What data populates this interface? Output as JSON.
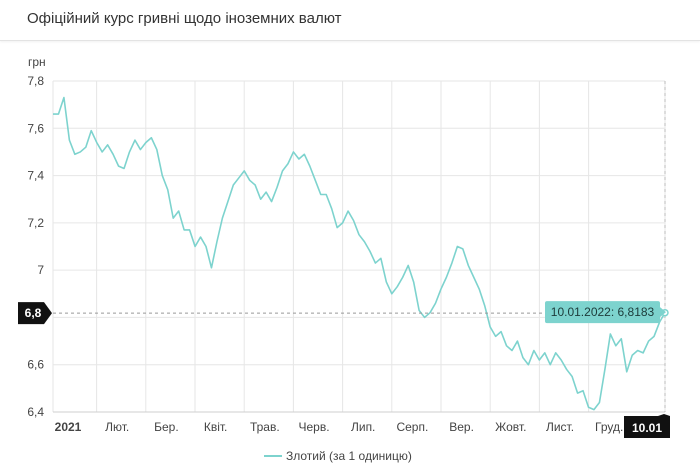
{
  "header": {
    "title": "Офіційний курс гривні щодо іноземних валют"
  },
  "chart_data": {
    "type": "line",
    "ylabel": "грн",
    "ylim": [
      6.4,
      7.8
    ],
    "yticks": [
      6.4,
      6.6,
      6.8,
      7,
      7.2,
      7.4,
      7.6,
      7.8
    ],
    "ytick_labels": [
      "6,4",
      "6,6",
      "6,8",
      "7",
      "7,2",
      "7,4",
      "7,6",
      "7,8"
    ],
    "x_labels": [
      "2021",
      "Лют.",
      "Бер.",
      "Квіт.",
      "Трав.",
      "Черв.",
      "Лип.",
      "Серп.",
      "Вер.",
      "Жовт.",
      "Лист.",
      "Груд."
    ],
    "x_label_bold_first": true,
    "grid": true,
    "color": "#7dd3ce",
    "series": [
      {
        "name": "Злотий (за 1 одиницю)",
        "x_start": "2021-01-01",
        "x_end": "2022-01-10",
        "values": [
          7.66,
          7.66,
          7.73,
          7.55,
          7.49,
          7.5,
          7.52,
          7.59,
          7.54,
          7.5,
          7.53,
          7.49,
          7.44,
          7.43,
          7.5,
          7.55,
          7.51,
          7.54,
          7.56,
          7.51,
          7.4,
          7.34,
          7.22,
          7.25,
          7.17,
          7.17,
          7.1,
          7.14,
          7.1,
          7.01,
          7.12,
          7.22,
          7.29,
          7.36,
          7.39,
          7.42,
          7.38,
          7.36,
          7.3,
          7.33,
          7.29,
          7.35,
          7.42,
          7.45,
          7.5,
          7.47,
          7.49,
          7.44,
          7.38,
          7.32,
          7.32,
          7.26,
          7.18,
          7.2,
          7.25,
          7.21,
          7.15,
          7.12,
          7.08,
          7.03,
          7.05,
          6.95,
          6.9,
          6.93,
          6.97,
          7.02,
          6.95,
          6.83,
          6.8,
          6.82,
          6.86,
          6.92,
          6.97,
          7.03,
          7.1,
          7.09,
          7.02,
          6.97,
          6.92,
          6.85,
          6.76,
          6.72,
          6.74,
          6.68,
          6.66,
          6.7,
          6.63,
          6.6,
          6.66,
          6.62,
          6.65,
          6.6,
          6.65,
          6.62,
          6.58,
          6.55,
          6.48,
          6.49,
          6.42,
          6.41,
          6.44,
          6.58,
          6.73,
          6.68,
          6.71,
          6.57,
          6.64,
          6.66,
          6.65,
          6.7,
          6.72,
          6.78,
          6.82
        ]
      }
    ],
    "tooltip": {
      "label": "10.01.2022: 6,8183",
      "value": 6.8183
    },
    "crosshair": {
      "y_label": "6,8",
      "x_label": "10.01"
    },
    "legend": {
      "label": "Злотий (за 1 одиницю)",
      "position": "bottom"
    }
  }
}
